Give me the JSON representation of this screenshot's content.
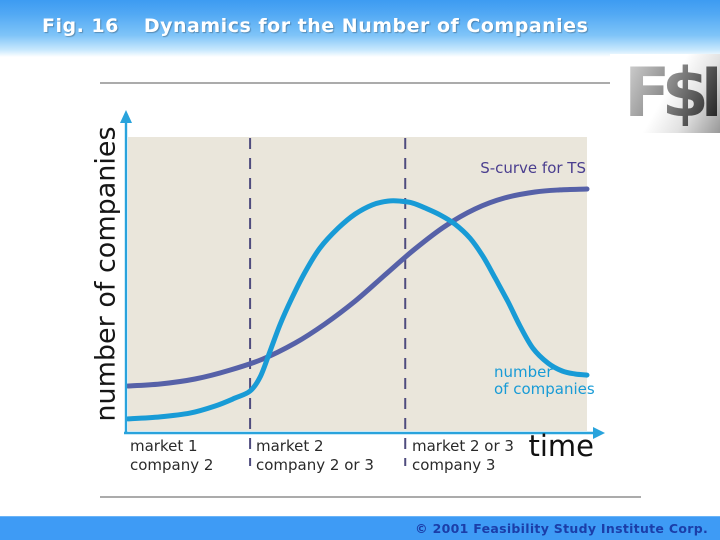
{
  "header": {
    "figure_label": "Fig. 16",
    "title": "Dynamics for the Number of Companies"
  },
  "logo": {
    "text": "F$I"
  },
  "footer": {
    "copyright": "© 2001 Feasibility Study Institute Corp."
  },
  "colors": {
    "header_gradient_top": "#3D9BF2",
    "header_gradient_bottom": "#FFFFFF",
    "footer_bg": "#3E9BF5",
    "footer_text": "#1B3EA9",
    "plot_bg": "#EAE6DB",
    "axis": "#29A3DC",
    "divider": "#4F4C7E",
    "s_curve": "#5661A8",
    "companies_curve": "#189BD6",
    "s_curve_label": "#4A3E8F",
    "rule": "#ABABAB"
  },
  "chart_data": {
    "type": "line",
    "title": "Dynamics for the Number of Companies",
    "xlabel": "time",
    "ylabel": "number of companies",
    "axes_numeric": false,
    "x_range_normalized": [
      0,
      1
    ],
    "y_range_normalized": [
      0,
      1
    ],
    "grid": false,
    "legend_position": "inline-annotations",
    "dividers_x": [
      0.266,
      0.604
    ],
    "phases": [
      {
        "line1": "market 1",
        "line2": "company 2",
        "x_range": [
          0,
          0.266
        ]
      },
      {
        "line1": "market 2",
        "line2": "company 2 or 3",
        "x_range": [
          0.266,
          0.604
        ]
      },
      {
        "line1": "market 2 or 3",
        "line2": "company 3",
        "x_range": [
          0.604,
          1
        ]
      }
    ],
    "annotations": {
      "s_curve_label": "S-curve for TS",
      "companies_label_line1": "number",
      "companies_label_line2": "of companies"
    },
    "series": [
      {
        "name": "S-curve for TS",
        "shape": "sigmoid rising, saturates at high level",
        "color": "#5661A8",
        "points": [
          [
            0.0,
            0.153
          ],
          [
            0.07,
            0.16
          ],
          [
            0.146,
            0.177
          ],
          [
            0.222,
            0.207
          ],
          [
            0.294,
            0.245
          ],
          [
            0.364,
            0.299
          ],
          [
            0.429,
            0.364
          ],
          [
            0.495,
            0.442
          ],
          [
            0.56,
            0.531
          ],
          [
            0.625,
            0.619
          ],
          [
            0.691,
            0.697
          ],
          [
            0.756,
            0.755
          ],
          [
            0.821,
            0.793
          ],
          [
            0.887,
            0.813
          ],
          [
            0.941,
            0.82
          ],
          [
            1.0,
            0.823
          ]
        ]
      },
      {
        "name": "number of companies",
        "shape": "rises steeply, peaks, then declines and levels off",
        "color": "#189BD6",
        "points": [
          [
            0.0,
            0.041
          ],
          [
            0.07,
            0.048
          ],
          [
            0.135,
            0.061
          ],
          [
            0.19,
            0.085
          ],
          [
            0.233,
            0.112
          ],
          [
            0.266,
            0.136
          ],
          [
            0.288,
            0.184
          ],
          [
            0.309,
            0.269
          ],
          [
            0.331,
            0.361
          ],
          [
            0.357,
            0.452
          ],
          [
            0.386,
            0.541
          ],
          [
            0.418,
            0.622
          ],
          [
            0.458,
            0.69
          ],
          [
            0.495,
            0.738
          ],
          [
            0.532,
            0.769
          ],
          [
            0.566,
            0.782
          ],
          [
            0.593,
            0.782
          ],
          [
            0.619,
            0.776
          ],
          [
            0.647,
            0.759
          ],
          [
            0.68,
            0.735
          ],
          [
            0.712,
            0.704
          ],
          [
            0.745,
            0.656
          ],
          [
            0.773,
            0.595
          ],
          [
            0.8,
            0.52
          ],
          [
            0.828,
            0.439
          ],
          [
            0.854,
            0.357
          ],
          [
            0.882,
            0.282
          ],
          [
            0.915,
            0.231
          ],
          [
            0.946,
            0.204
          ],
          [
            0.974,
            0.194
          ],
          [
            1.0,
            0.19
          ]
        ]
      }
    ]
  }
}
